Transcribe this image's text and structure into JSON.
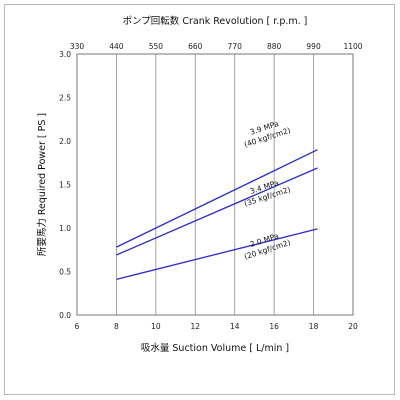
{
  "chart_data": {
    "type": "line",
    "title": "",
    "xlabel": "吸水量 Suction Volume [ L/min ]",
    "ylabel": "所要馬力 Required Power [ PS ]",
    "x2label": "ポンプ回転数 Crank Revolution [ r.p.m. ]",
    "xlim": [
      6,
      20
    ],
    "ylim": [
      0,
      3.0
    ],
    "x_ticks": [
      "6",
      "8",
      "10",
      "12",
      "14",
      "16",
      "18",
      "20"
    ],
    "y_ticks": [
      "0.0",
      "0.5",
      "1.0",
      "1.5",
      "2.0",
      "2.5",
      "3.0"
    ],
    "top_ticks": [
      "330",
      "440",
      "550",
      "660",
      "770",
      "880",
      "990",
      "1100"
    ],
    "grid": "vertical",
    "series": [
      {
        "name": "3.9 MPa (40 kgf/cm2)",
        "label_line1": "3.9 MPa",
        "label_line2": "(40 kgf/cm2)",
        "x": [
          8,
          18.2
        ],
        "y": [
          0.78,
          1.9
        ]
      },
      {
        "name": "3.4 MPa (35 kgf/cm2)",
        "label_line1": "3.4 MPa",
        "label_line2": "(35 kgf/cm2)",
        "x": [
          8,
          18.2
        ],
        "y": [
          0.69,
          1.69
        ]
      },
      {
        "name": "2.0 MPa (20 kgf/cm2)",
        "label_line1": "2.0 MPa",
        "label_line2": "(20 kgf/cm2)",
        "x": [
          8,
          18.2
        ],
        "y": [
          0.41,
          0.99
        ]
      }
    ],
    "line_color": "#2a2ad0"
  }
}
